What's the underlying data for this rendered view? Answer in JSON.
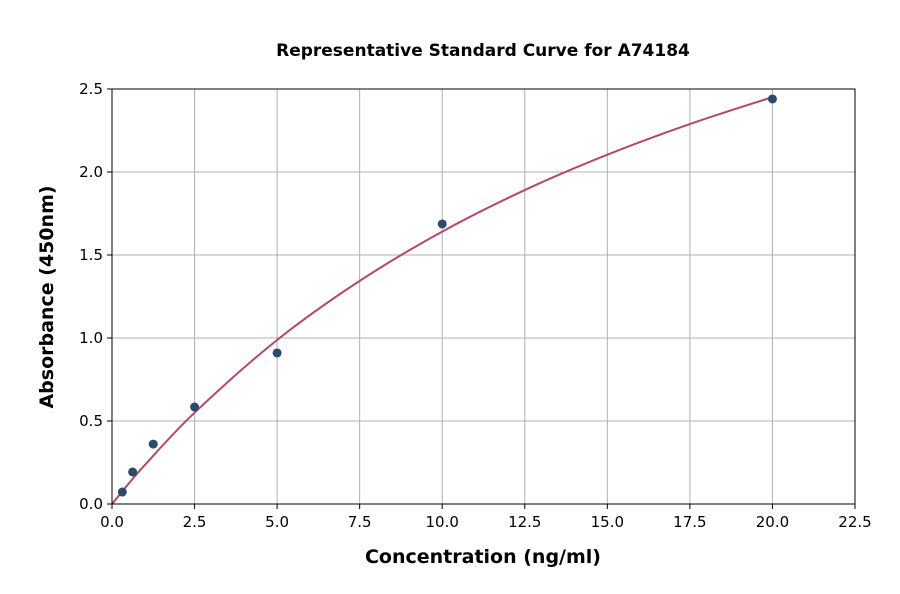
{
  "chart_data": {
    "type": "scatter",
    "title": "Representative Standard Curve for A74184",
    "xlabel": "Concentration (ng/ml)",
    "ylabel": "Absorbance (450nm)",
    "xlim": [
      0,
      22.5
    ],
    "ylim": [
      0,
      2.5
    ],
    "x_ticks": [
      "0.0",
      "2.5",
      "5.0",
      "7.5",
      "10.0",
      "12.5",
      "15.0",
      "17.5",
      "20.0",
      "22.5"
    ],
    "y_ticks": [
      "0.0",
      "0.5",
      "1.0",
      "1.5",
      "2.0",
      "2.5"
    ],
    "grid": true,
    "points": {
      "x": [
        0.3125,
        0.625,
        1.25,
        2.5,
        5,
        10,
        20
      ],
      "y": [
        0.072,
        0.193,
        0.361,
        0.584,
        0.91,
        1.687,
        2.44
      ]
    },
    "fit_curve": {
      "x": [
        0,
        0.5,
        1,
        2.5,
        5,
        7.5,
        10,
        12.5,
        15,
        17.5,
        20
      ],
      "y": [
        0,
        0.121,
        0.236,
        0.55,
        0.988,
        1.344,
        1.641,
        1.891,
        2.104,
        2.289,
        2.451
      ]
    },
    "colors": {
      "points": "#2e4a6b",
      "curve": "#b5476c",
      "grid": "#b0b0b0"
    }
  }
}
